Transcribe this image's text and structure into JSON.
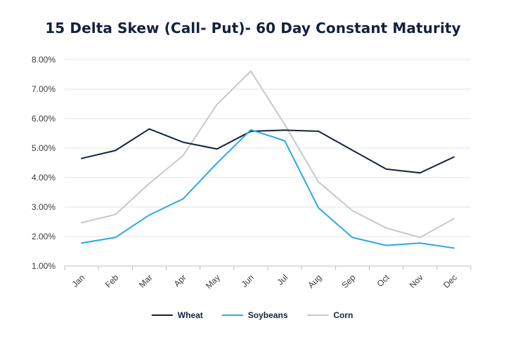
{
  "chart_data": {
    "type": "line",
    "title": "15 Delta Skew (Call- Put)- 60 Day Constant Maturity",
    "xlabel": "",
    "ylabel": "",
    "categories": [
      "Jan",
      "Feb",
      "Mar",
      "Apr",
      "May",
      "Jun",
      "Jul",
      "Aug",
      "Sep",
      "Oct",
      "Nov",
      "Dec"
    ],
    "ylim": [
      1.0,
      8.0
    ],
    "yticks": [
      "1.00%",
      "2.00%",
      "3.00%",
      "4.00%",
      "5.00%",
      "6.00%",
      "7.00%",
      "8.00%"
    ],
    "grid": true,
    "legend_position": "bottom-center",
    "series": [
      {
        "name": "Wheat",
        "color": "#14213d",
        "values": [
          4.65,
          4.92,
          5.65,
          5.2,
          4.97,
          5.57,
          5.61,
          5.57,
          4.93,
          4.29,
          4.16,
          4.7
        ]
      },
      {
        "name": "Soybeans",
        "color": "#2aaae1",
        "values": [
          1.78,
          1.97,
          2.73,
          3.28,
          4.49,
          5.62,
          5.25,
          2.97,
          1.97,
          1.7,
          1.78,
          1.61
        ]
      },
      {
        "name": "Corn",
        "color": "#c6c8ca",
        "values": [
          2.47,
          2.75,
          3.8,
          4.75,
          6.48,
          7.61,
          5.8,
          3.85,
          2.88,
          2.29,
          1.97,
          2.61
        ]
      }
    ]
  }
}
